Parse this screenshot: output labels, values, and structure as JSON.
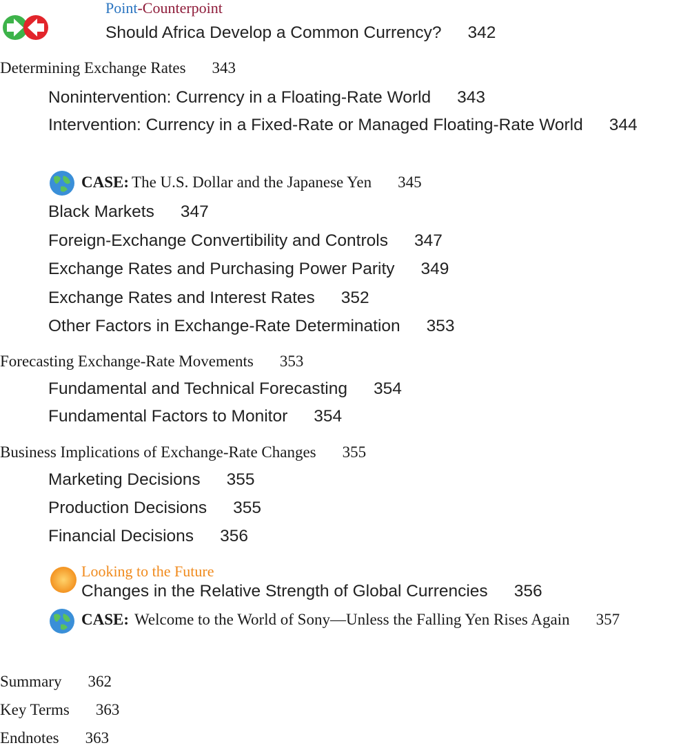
{
  "point_counterpoint": {
    "label": "Point",
    "label_suffix": "-Counterpoint",
    "title": "Should Africa Develop a Common Currency?",
    "page": 342
  },
  "sections": [
    {
      "title": "Determining Exchange Rates",
      "page": 343,
      "items": [
        {
          "title": "Nonintervention: Currency in a Floating-Rate World",
          "page": 343
        },
        {
          "title": "Intervention: Currency in a Fixed-Rate or Managed Floating-Rate World",
          "page": 344
        },
        {
          "label": "CASE:",
          "title": "The U.S. Dollar and the Japanese Yen",
          "page": 345
        },
        {
          "title": "Black Markets",
          "page": 347
        },
        {
          "title": "Foreign-Exchange Convertibility and Controls",
          "page": 347
        },
        {
          "title": "Exchange Rates and Purchasing Power Parity",
          "page": 349
        },
        {
          "title": "Exchange Rates and Interest Rates",
          "page": 352
        },
        {
          "title": "Other Factors in Exchange-Rate Determination",
          "page": 353
        }
      ]
    },
    {
      "title": "Forecasting Exchange-Rate Movements",
      "page": 353,
      "items": [
        {
          "title": "Fundamental and Technical Forecasting",
          "page": 354
        },
        {
          "title": "Fundamental Factors to Monitor",
          "page": 354
        }
      ]
    },
    {
      "title": "Business Implications of Exchange-Rate Changes",
      "page": 355,
      "items": [
        {
          "title": "Marketing Decisions",
          "page": 355
        },
        {
          "title": "Production Decisions",
          "page": 355
        },
        {
          "title": "Financial Decisions",
          "page": 356
        }
      ]
    }
  ],
  "looking_to_the_future": {
    "label": "Looking to the Future",
    "title": "Changes in the Relative Strength of Global Currencies",
    "page": 356
  },
  "closing_case": {
    "label": "CASE:",
    "title": "Welcome to the World of Sony—Unless the Falling Yen Rises Again",
    "page": 357
  },
  "end_matter": [
    {
      "title": "Summary",
      "page": 362
    },
    {
      "title": "Key Terms",
      "page": 363
    },
    {
      "title": "Endnotes",
      "page": 363
    }
  ]
}
